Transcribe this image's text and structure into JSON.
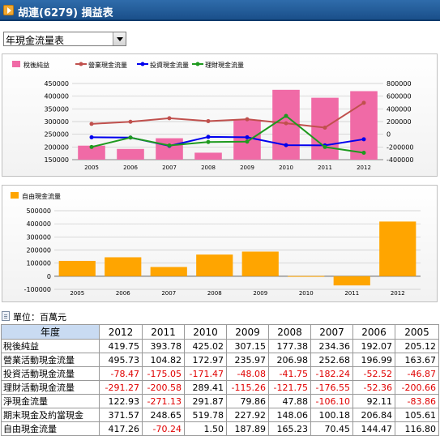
{
  "title": "胡連(6279) 損益表",
  "selector": {
    "value": "年現金流量表"
  },
  "unit_label": "單位：百萬元",
  "colors": {
    "bar1": "#f06aa6",
    "op": "#c0504d",
    "inv": "#0000ee",
    "fin": "#1e9a1e",
    "bar2": "#ffa500"
  },
  "chart_data": [
    {
      "type": "bar",
      "categories": [
        "2005",
        "2006",
        "2007",
        "2008",
        "2009",
        "2010",
        "2011",
        "2012"
      ],
      "legend": [
        "稅後純益",
        "營業現金流量",
        "投資現金流量",
        "理財現金流量"
      ],
      "left_axis": {
        "ticks": [
          "450000",
          "400000",
          "350000",
          "300000",
          "250000",
          "200000",
          "150000"
        ],
        "ylim": [
          150000,
          450000
        ]
      },
      "right_axis": {
        "ticks": [
          "800000",
          "600000",
          "400000",
          "200000",
          "0",
          "-200000",
          "-400000"
        ],
        "ylim": [
          -400000,
          800000
        ]
      },
      "series": [
        {
          "name": "稅後純益",
          "kind": "bar",
          "axis": "left",
          "values": [
            205120,
            192070,
            234360,
            177380,
            307150,
            425020,
            393780,
            419750
          ]
        },
        {
          "name": "營業現金流量",
          "kind": "line",
          "axis": "right",
          "values": [
            163670,
            196990,
            252680,
            206980,
            235970,
            172970,
            104820,
            495730
          ]
        },
        {
          "name": "投資現金流量",
          "kind": "line",
          "axis": "right",
          "values": [
            -46870,
            -52520,
            -182240,
            -41750,
            -48080,
            -171470,
            -175050,
            -78470
          ]
        },
        {
          "name": "理財現金流量",
          "kind": "line",
          "axis": "right",
          "values": [
            -200660,
            -52360,
            -176550,
            -121750,
            -115260,
            289410,
            -200580,
            -291270
          ]
        }
      ]
    },
    {
      "type": "bar",
      "categories": [
        "2005",
        "2006",
        "2007",
        "2008",
        "2009",
        "2010",
        "2011",
        "2012"
      ],
      "legend": [
        "自由現金流量"
      ],
      "axis": {
        "ticks": [
          "500000",
          "400000",
          "300000",
          "200000",
          "100000",
          "0",
          "-100000"
        ],
        "ylim": [
          -100000,
          500000
        ]
      },
      "series": [
        {
          "name": "自由現金流量",
          "values": [
            116800,
            144470,
            70450,
            165230,
            187890,
            1500,
            -70240,
            417260
          ]
        }
      ]
    }
  ],
  "table": {
    "header_label": "年度",
    "years": [
      "2012",
      "2011",
      "2010",
      "2009",
      "2008",
      "2007",
      "2006",
      "2005"
    ],
    "rows": [
      {
        "label": "稅後純益",
        "values": [
          "419.75",
          "393.78",
          "425.02",
          "307.15",
          "177.38",
          "234.36",
          "192.07",
          "205.12"
        ]
      },
      {
        "label": "營業活動現金流量",
        "values": [
          "495.73",
          "104.82",
          "172.97",
          "235.97",
          "206.98",
          "252.68",
          "196.99",
          "163.67"
        ]
      },
      {
        "label": "投資活動現金流量",
        "values": [
          "-78.47",
          "-175.05",
          "-171.47",
          "-48.08",
          "-41.75",
          "-182.24",
          "-52.52",
          "-46.87"
        ]
      },
      {
        "label": "理財活動現金流量",
        "values": [
          "-291.27",
          "-200.58",
          "289.41",
          "-115.26",
          "-121.75",
          "-176.55",
          "-52.36",
          "-200.66"
        ]
      },
      {
        "label": "淨現金流量",
        "values": [
          "122.93",
          "-271.13",
          "291.87",
          "79.86",
          "47.88",
          "-106.10",
          "92.11",
          "-83.86"
        ]
      },
      {
        "label": "期末現金及約當現金",
        "values": [
          "371.57",
          "248.65",
          "519.78",
          "227.92",
          "148.06",
          "100.18",
          "206.84",
          "105.61"
        ]
      },
      {
        "label": "自由現金流量",
        "values": [
          "417.26",
          "-70.24",
          "1.50",
          "187.89",
          "165.23",
          "70.45",
          "144.47",
          "116.80"
        ]
      }
    ]
  }
}
